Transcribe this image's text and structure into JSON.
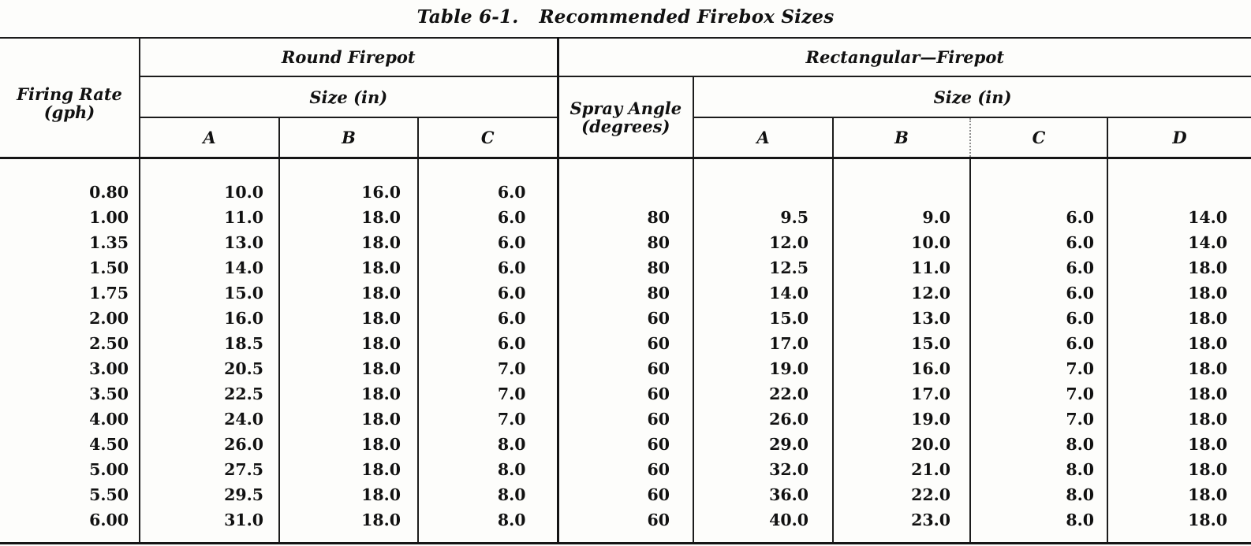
{
  "title": {
    "label": "Table 6-1.",
    "caption": "Recommended Firebox Sizes"
  },
  "table": {
    "firing_rate_header": {
      "line1": "Firing Rate",
      "line2": "(gph)"
    },
    "round": {
      "title": "Round Firepot",
      "size_label": "Size (in)",
      "columns": [
        "A",
        "B",
        "C"
      ]
    },
    "rect": {
      "title": "Rectangular—Firepot",
      "spray_label": {
        "line1": "Spray Angle",
        "line2": "(degrees)"
      },
      "size_label": "Size (in)",
      "columns": [
        "A",
        "B",
        "C",
        "D"
      ]
    },
    "column_keys": [
      "firing_rate_gph",
      "round_a",
      "round_b",
      "round_c",
      "spray_angle_degrees",
      "rect_a",
      "rect_b",
      "rect_c",
      "rect_d"
    ],
    "rows": [
      [
        "0.80",
        "10.0",
        "16.0",
        "6.0",
        "",
        "",
        "",
        "",
        ""
      ],
      [
        "1.00",
        "11.0",
        "18.0",
        "6.0",
        "80",
        "9.5",
        "9.0",
        "6.0",
        "14.0"
      ],
      [
        "1.35",
        "13.0",
        "18.0",
        "6.0",
        "80",
        "12.0",
        "10.0",
        "6.0",
        "14.0"
      ],
      [
        "1.50",
        "14.0",
        "18.0",
        "6.0",
        "80",
        "12.5",
        "11.0",
        "6.0",
        "18.0"
      ],
      [
        "1.75",
        "15.0",
        "18.0",
        "6.0",
        "80",
        "14.0",
        "12.0",
        "6.0",
        "18.0"
      ],
      [
        "2.00",
        "16.0",
        "18.0",
        "6.0",
        "60",
        "15.0",
        "13.0",
        "6.0",
        "18.0"
      ],
      [
        "2.50",
        "18.5",
        "18.0",
        "6.0",
        "60",
        "17.0",
        "15.0",
        "6.0",
        "18.0"
      ],
      [
        "3.00",
        "20.5",
        "18.0",
        "7.0",
        "60",
        "19.0",
        "16.0",
        "7.0",
        "18.0"
      ],
      [
        "3.50",
        "22.5",
        "18.0",
        "7.0",
        "60",
        "22.0",
        "17.0",
        "7.0",
        "18.0"
      ],
      [
        "4.00",
        "24.0",
        "18.0",
        "7.0",
        "60",
        "26.0",
        "19.0",
        "7.0",
        "18.0"
      ],
      [
        "4.50",
        "26.0",
        "18.0",
        "8.0",
        "60",
        "29.0",
        "20.0",
        "8.0",
        "18.0"
      ],
      [
        "5.00",
        "27.5",
        "18.0",
        "8.0",
        "60",
        "32.0",
        "21.0",
        "8.0",
        "18.0"
      ],
      [
        "5.50",
        "29.5",
        "18.0",
        "8.0",
        "60",
        "36.0",
        "22.0",
        "8.0",
        "18.0"
      ],
      [
        "6.00",
        "31.0",
        "18.0",
        "8.0",
        "60",
        "40.0",
        "23.0",
        "8.0",
        "18.0"
      ]
    ],
    "colors": {
      "ink": "#111111",
      "rule": "#1c1c1c",
      "paper": "#fdfdfb"
    }
  }
}
